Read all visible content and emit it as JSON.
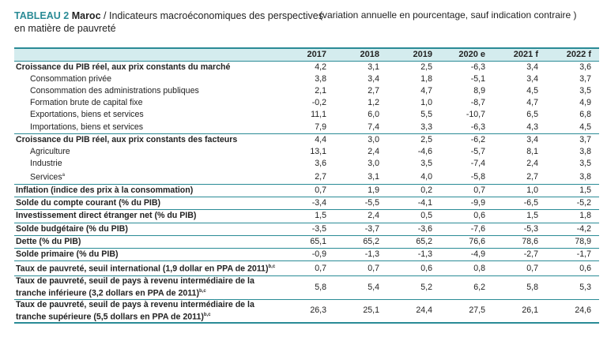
{
  "title": {
    "code": "TABLEAU 2",
    "country": "Maroc",
    "separator": "/",
    "text_line1": "Indicateurs macroéconomiques des perspectives",
    "text_line2": "en matière de pauvreté",
    "subtitle": "(variation annuelle en pourcentage, sauf indication contraire )"
  },
  "columns": [
    "2017",
    "2018",
    "2019",
    "2020 e",
    "2021 f",
    "2022 f"
  ],
  "rows": [
    {
      "label": "Croissance du PIB réel, aux prix constants du marché",
      "style": "bold",
      "values": [
        "4,2",
        "3,1",
        "2,5",
        "-6,3",
        "3,4",
        "3,6"
      ]
    },
    {
      "label": "Consommation privée",
      "style": "sub",
      "values": [
        "3,8",
        "3,4",
        "1,8",
        "-5,1",
        "3,4",
        "3,7"
      ]
    },
    {
      "label": "Consommation des administrations publiques",
      "style": "sub",
      "values": [
        "2,1",
        "2,7",
        "4,7",
        "8,9",
        "4,5",
        "3,5"
      ]
    },
    {
      "label": "Formation brute de capital fixe",
      "style": "sub",
      "values": [
        "-0,2",
        "1,2",
        "1,0",
        "-8,7",
        "4,7",
        "4,9"
      ]
    },
    {
      "label": "Exportations, biens et services",
      "style": "sub",
      "values": [
        "11,1",
        "6,0",
        "5,5",
        "-10,7",
        "6,5",
        "6,8"
      ]
    },
    {
      "label": "Importations, biens et services",
      "style": "sub",
      "values": [
        "7,9",
        "7,4",
        "3,3",
        "-6,3",
        "4,3",
        "4,5"
      ]
    },
    {
      "label": "Croissance du PIB réel, aux prix constants des facteurs",
      "style": "bold sep",
      "values": [
        "4,4",
        "3,0",
        "2,5",
        "-6,2",
        "3,4",
        "3,7"
      ]
    },
    {
      "label": "Agriculture",
      "style": "sub",
      "values": [
        "13,1",
        "2,4",
        "-4,6",
        "-5,7",
        "8,1",
        "3,8"
      ]
    },
    {
      "label": "Industrie",
      "style": "sub",
      "values": [
        "3,6",
        "3,0",
        "3,5",
        "-7,4",
        "2,4",
        "3,5"
      ]
    },
    {
      "label": "Services",
      "sup": "a",
      "style": "sub",
      "values": [
        "2,7",
        "3,1",
        "4,0",
        "-5,8",
        "2,7",
        "3,8"
      ]
    },
    {
      "label": "Inflation (indice des prix à la consommation)",
      "style": "bold sep",
      "values": [
        "0,7",
        "1,9",
        "0,2",
        "0,7",
        "1,0",
        "1,5"
      ]
    },
    {
      "label": "Solde du compte courant (% du PIB)",
      "style": "bold sep",
      "values": [
        "-3,4",
        "-5,5",
        "-4,1",
        "-9,9",
        "-6,5",
        "-5,2"
      ]
    },
    {
      "label": "Investissement direct étranger net (% du PIB)",
      "style": "bold sep",
      "values": [
        "1,5",
        "2,4",
        "0,5",
        "0,6",
        "1,5",
        "1,8"
      ]
    },
    {
      "label": "Solde budgétaire (% du PIB)",
      "style": "bold sep",
      "values": [
        "-3,5",
        "-3,7",
        "-3,6",
        "-7,6",
        "-5,3",
        "-4,2"
      ]
    },
    {
      "label": "Dette (% du PIB)",
      "style": "bold sep",
      "values": [
        "65,1",
        "65,2",
        "65,2",
        "76,6",
        "78,6",
        "78,9"
      ]
    },
    {
      "label": "Solde primaire (% du PIB)",
      "style": "bold sep",
      "values": [
        "-0,9",
        "-1,3",
        "-1,3",
        "-4,9",
        "-2,7",
        "-1,7"
      ]
    },
    {
      "label": "Taux de pauvreté, seuil international (1,9 dollar en PPA de 2011)",
      "sup": "b,c",
      "style": "bold sep",
      "values": [
        "0,7",
        "0,7",
        "0,6",
        "0,8",
        "0,7",
        "0,6"
      ]
    },
    {
      "label": "Taux de pauvreté, seuil de pays à revenu intermédiaire de la tranche inférieure (3,2 dollars en PPA de 2011)",
      "sup": "b,c",
      "style": "bold sep tall",
      "values": [
        "5,8",
        "5,4",
        "5,2",
        "6,2",
        "5,8",
        "5,3"
      ]
    },
    {
      "label": "Taux de pauvreté, seuil de pays à revenu intermédiaire de la tranche supérieure (5,5 dollars en PPA de 2011)",
      "sup": "b,c",
      "style": "bold sep tall last",
      "values": [
        "26,3",
        "25,1",
        "24,4",
        "27,5",
        "26,1",
        "24,6"
      ]
    }
  ]
}
